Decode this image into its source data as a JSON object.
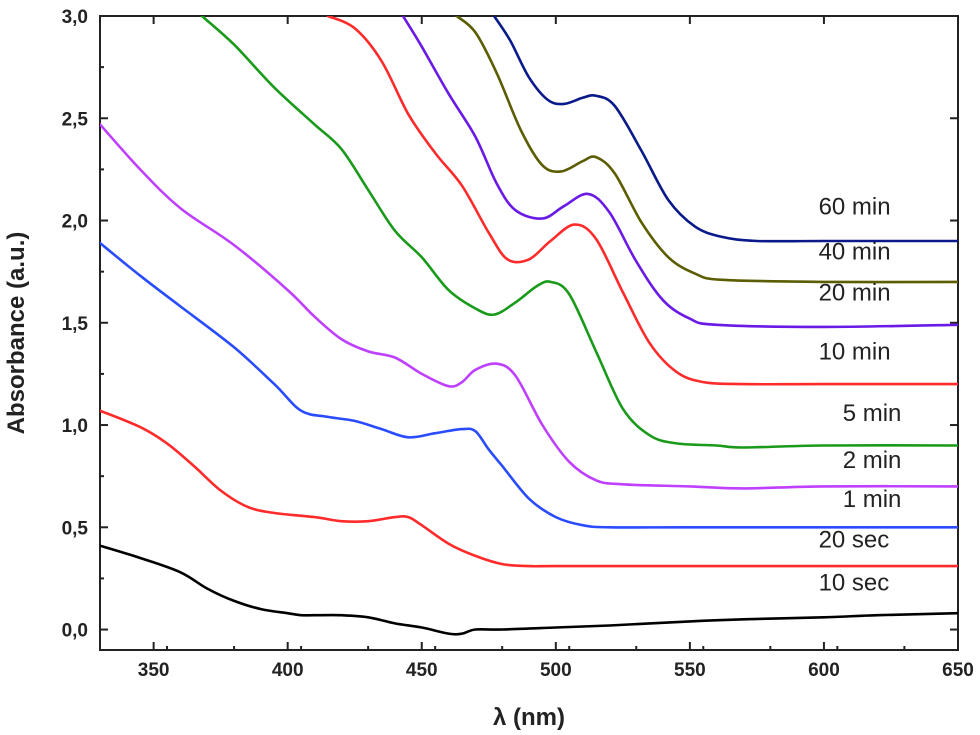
{
  "chart_data": {
    "type": "line",
    "xlabel": "λ (nm)",
    "ylabel": "Absorbance (a.u.)",
    "xlim": [
      330,
      650
    ],
    "ylim": [
      -0.1,
      3.0
    ],
    "x_ticks": [
      350,
      400,
      450,
      500,
      550,
      600,
      650
    ],
    "y_ticks": [
      0.0,
      0.5,
      1.0,
      1.5,
      2.0,
      2.5,
      3.0
    ],
    "x_tick_labels": [
      "350",
      "400",
      "450",
      "500",
      "550",
      "600",
      "650"
    ],
    "y_tick_labels": [
      "0,0",
      "0,5",
      "1,0",
      "1,5",
      "2,0",
      "2,5",
      "3,0"
    ],
    "grid": false,
    "series": [
      {
        "name": "10 sec",
        "color": "#000000",
        "points": [
          [
            330,
            0.41
          ],
          [
            345,
            0.35
          ],
          [
            360,
            0.28
          ],
          [
            370,
            0.2
          ],
          [
            380,
            0.14
          ],
          [
            390,
            0.1
          ],
          [
            400,
            0.08
          ],
          [
            405,
            0.07
          ],
          [
            410,
            0.07
          ],
          [
            420,
            0.07
          ],
          [
            430,
            0.06
          ],
          [
            440,
            0.03
          ],
          [
            450,
            0.01
          ],
          [
            460,
            -0.02
          ],
          [
            465,
            -0.02
          ],
          [
            470,
            0.0
          ],
          [
            480,
            0.0
          ],
          [
            500,
            0.01
          ],
          [
            520,
            0.02
          ],
          [
            550,
            0.04
          ],
          [
            570,
            0.05
          ],
          [
            600,
            0.06
          ],
          [
            620,
            0.07
          ],
          [
            650,
            0.08
          ]
        ]
      },
      {
        "name": "20 sec",
        "color": "#ff2a2a",
        "points": [
          [
            330,
            1.07
          ],
          [
            345,
            0.99
          ],
          [
            355,
            0.91
          ],
          [
            365,
            0.8
          ],
          [
            375,
            0.68
          ],
          [
            385,
            0.6
          ],
          [
            395,
            0.57
          ],
          [
            410,
            0.55
          ],
          [
            420,
            0.53
          ],
          [
            430,
            0.53
          ],
          [
            440,
            0.55
          ],
          [
            445,
            0.55
          ],
          [
            450,
            0.51
          ],
          [
            460,
            0.42
          ],
          [
            470,
            0.36
          ],
          [
            480,
            0.32
          ],
          [
            490,
            0.31
          ],
          [
            500,
            0.31
          ],
          [
            550,
            0.31
          ],
          [
            600,
            0.31
          ],
          [
            650,
            0.31
          ]
        ]
      },
      {
        "name": "1 min",
        "color": "#2a4cff",
        "points": [
          [
            330,
            1.89
          ],
          [
            345,
            1.73
          ],
          [
            360,
            1.58
          ],
          [
            380,
            1.38
          ],
          [
            395,
            1.2
          ],
          [
            405,
            1.07
          ],
          [
            415,
            1.04
          ],
          [
            425,
            1.02
          ],
          [
            435,
            0.98
          ],
          [
            445,
            0.94
          ],
          [
            455,
            0.96
          ],
          [
            465,
            0.98
          ],
          [
            470,
            0.97
          ],
          [
            475,
            0.88
          ],
          [
            480,
            0.8
          ],
          [
            490,
            0.64
          ],
          [
            500,
            0.55
          ],
          [
            510,
            0.51
          ],
          [
            520,
            0.5
          ],
          [
            550,
            0.5
          ],
          [
            600,
            0.5
          ],
          [
            650,
            0.5
          ]
        ]
      },
      {
        "name": "2 min",
        "color": "#bf40ff",
        "points": [
          [
            330,
            2.47
          ],
          [
            345,
            2.25
          ],
          [
            360,
            2.06
          ],
          [
            380,
            1.88
          ],
          [
            400,
            1.66
          ],
          [
            410,
            1.53
          ],
          [
            420,
            1.42
          ],
          [
            430,
            1.36
          ],
          [
            440,
            1.33
          ],
          [
            450,
            1.25
          ],
          [
            460,
            1.19
          ],
          [
            465,
            1.21
          ],
          [
            470,
            1.27
          ],
          [
            478,
            1.3
          ],
          [
            485,
            1.24
          ],
          [
            495,
            1.0
          ],
          [
            505,
            0.82
          ],
          [
            515,
            0.73
          ],
          [
            525,
            0.71
          ],
          [
            550,
            0.7
          ],
          [
            570,
            0.69
          ],
          [
            600,
            0.7
          ],
          [
            650,
            0.7
          ]
        ]
      },
      {
        "name": "5 min",
        "color": "#1a9a1a",
        "points": [
          [
            368,
            3.0
          ],
          [
            380,
            2.86
          ],
          [
            395,
            2.65
          ],
          [
            410,
            2.47
          ],
          [
            420,
            2.35
          ],
          [
            430,
            2.15
          ],
          [
            440,
            1.95
          ],
          [
            450,
            1.82
          ],
          [
            460,
            1.66
          ],
          [
            470,
            1.57
          ],
          [
            477,
            1.54
          ],
          [
            485,
            1.6
          ],
          [
            493,
            1.68
          ],
          [
            498,
            1.7
          ],
          [
            505,
            1.64
          ],
          [
            515,
            1.36
          ],
          [
            525,
            1.08
          ],
          [
            535,
            0.95
          ],
          [
            545,
            0.91
          ],
          [
            560,
            0.9
          ],
          [
            570,
            0.89
          ],
          [
            600,
            0.9
          ],
          [
            650,
            0.9
          ]
        ]
      },
      {
        "name": "10 min",
        "color": "#ff2a2a",
        "points": [
          [
            415,
            3.0
          ],
          [
            425,
            2.94
          ],
          [
            435,
            2.78
          ],
          [
            445,
            2.52
          ],
          [
            455,
            2.33
          ],
          [
            465,
            2.17
          ],
          [
            475,
            1.94
          ],
          [
            482,
            1.81
          ],
          [
            490,
            1.81
          ],
          [
            498,
            1.9
          ],
          [
            507,
            1.98
          ],
          [
            515,
            1.91
          ],
          [
            525,
            1.65
          ],
          [
            535,
            1.4
          ],
          [
            545,
            1.26
          ],
          [
            555,
            1.21
          ],
          [
            570,
            1.2
          ],
          [
            600,
            1.2
          ],
          [
            650,
            1.2
          ]
        ]
      },
      {
        "name": "20 min",
        "color": "#6a1ae6",
        "points": [
          [
            443,
            3.0
          ],
          [
            450,
            2.85
          ],
          [
            460,
            2.62
          ],
          [
            470,
            2.41
          ],
          [
            478,
            2.18
          ],
          [
            485,
            2.05
          ],
          [
            495,
            2.01
          ],
          [
            503,
            2.07
          ],
          [
            512,
            2.13
          ],
          [
            520,
            2.04
          ],
          [
            530,
            1.8
          ],
          [
            540,
            1.61
          ],
          [
            550,
            1.52
          ],
          [
            560,
            1.49
          ],
          [
            600,
            1.48
          ],
          [
            650,
            1.49
          ]
        ]
      },
      {
        "name": "40 min",
        "color": "#5c5c00",
        "points": [
          [
            463,
            3.0
          ],
          [
            470,
            2.92
          ],
          [
            478,
            2.72
          ],
          [
            487,
            2.44
          ],
          [
            495,
            2.27
          ],
          [
            502,
            2.24
          ],
          [
            510,
            2.29
          ],
          [
            515,
            2.31
          ],
          [
            522,
            2.23
          ],
          [
            532,
            1.99
          ],
          [
            542,
            1.82
          ],
          [
            552,
            1.74
          ],
          [
            562,
            1.71
          ],
          [
            600,
            1.7
          ],
          [
            650,
            1.7
          ]
        ]
      },
      {
        "name": "60 min",
        "color": "#0a1a8a",
        "points": [
          [
            477,
            3.0
          ],
          [
            483,
            2.88
          ],
          [
            490,
            2.7
          ],
          [
            497,
            2.59
          ],
          [
            503,
            2.57
          ],
          [
            510,
            2.6
          ],
          [
            515,
            2.61
          ],
          [
            522,
            2.56
          ],
          [
            532,
            2.34
          ],
          [
            542,
            2.1
          ],
          [
            552,
            1.97
          ],
          [
            562,
            1.92
          ],
          [
            575,
            1.9
          ],
          [
            600,
            1.9
          ],
          [
            650,
            1.9
          ]
        ]
      }
    ],
    "annotations": [
      {
        "series": "60 min",
        "text": "60 min",
        "x": 598,
        "y": 2.03
      },
      {
        "series": "40 min",
        "text": "40 min",
        "x": 598,
        "y": 1.81
      },
      {
        "series": "20 min",
        "text": "20 min",
        "x": 598,
        "y": 1.61
      },
      {
        "series": "10 min",
        "text": "10 min",
        "x": 598,
        "y": 1.32
      },
      {
        "series": "5 min",
        "text": "5 min",
        "x": 607,
        "y": 1.02
      },
      {
        "series": "2 min",
        "text": "2 min",
        "x": 607,
        "y": 0.79
      },
      {
        "series": "1 min",
        "text": "1 min",
        "x": 607,
        "y": 0.6
      },
      {
        "series": "20 sec",
        "text": "20 sec",
        "x": 598,
        "y": 0.4
      },
      {
        "series": "10 sec",
        "text": "10 sec",
        "x": 598,
        "y": 0.19
      }
    ]
  }
}
